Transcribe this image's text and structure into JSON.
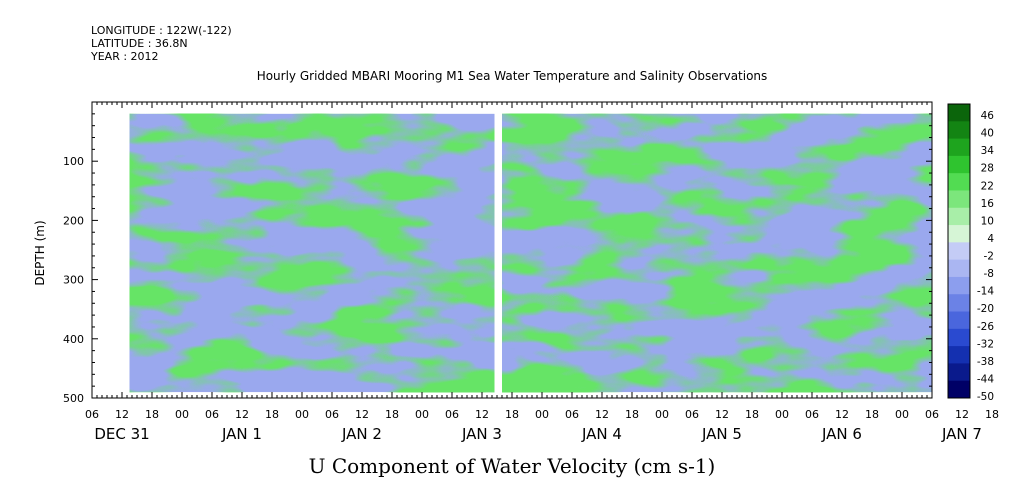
{
  "header": {
    "longitude": "LONGITUDE : 122W(-122)",
    "latitude": "LATITUDE : 36.8N",
    "year": "YEAR : 2012"
  },
  "chart_data": {
    "type": "heatmap",
    "title": "Hourly Gridded MBARI Mooring M1 Sea Water Temperature and Salinity Observations",
    "xlabel": "U Component of Water Velocity (cm s-1)",
    "ylabel": "DEPTH (m)",
    "x_unit": "hours since 2011-12-31 00:00",
    "xlim": [
      6,
      174
    ],
    "ylim": [
      500,
      0
    ],
    "y_ticks": [
      100,
      200,
      300,
      400,
      500
    ],
    "x_hour_ticks": [
      "06",
      "12",
      "18",
      "00",
      "06",
      "12",
      "18",
      "00",
      "06",
      "12",
      "18",
      "00",
      "06",
      "12",
      "18",
      "00",
      "06",
      "12",
      "18",
      "00",
      "06",
      "12",
      "18",
      "00",
      "06",
      "12",
      "18",
      "00",
      "06",
      "12",
      "18",
      "00",
      "06"
    ],
    "x_day_labels": [
      "DEC 31",
      "JAN  1",
      "JAN  2",
      "JAN  3",
      "JAN  4",
      "JAN  5",
      "JAN  6",
      "JAN  7"
    ],
    "data_extent": {
      "x_start": 13.5,
      "x_end": 174,
      "depth_top": 20,
      "depth_bottom": 490
    },
    "data_gaps": [
      {
        "x_from": 86.5,
        "x_to": 88.0,
        "depth_from": 0,
        "depth_to": 500
      }
    ],
    "colorbar": {
      "labels": [
        "46",
        "40",
        "34",
        "28",
        "22",
        "16",
        "10",
        "4",
        "-2",
        "-8",
        "-14",
        "-20",
        "-26",
        "-32",
        "-38",
        "-44",
        "-50"
      ],
      "range": [
        -50,
        50
      ],
      "colors": [
        "#000066",
        "#0a1a8c",
        "#1430b0",
        "#2a4ad0",
        "#4a66dd",
        "#6b82e6",
        "#8c9eee",
        "#aab6f2",
        "#c4ccf6",
        "#d6f5d6",
        "#a8eea8",
        "#7ce67c",
        "#52dc52",
        "#2fc42f",
        "#1ea41e",
        "#138413",
        "#0b650b"
      ]
    }
  }
}
